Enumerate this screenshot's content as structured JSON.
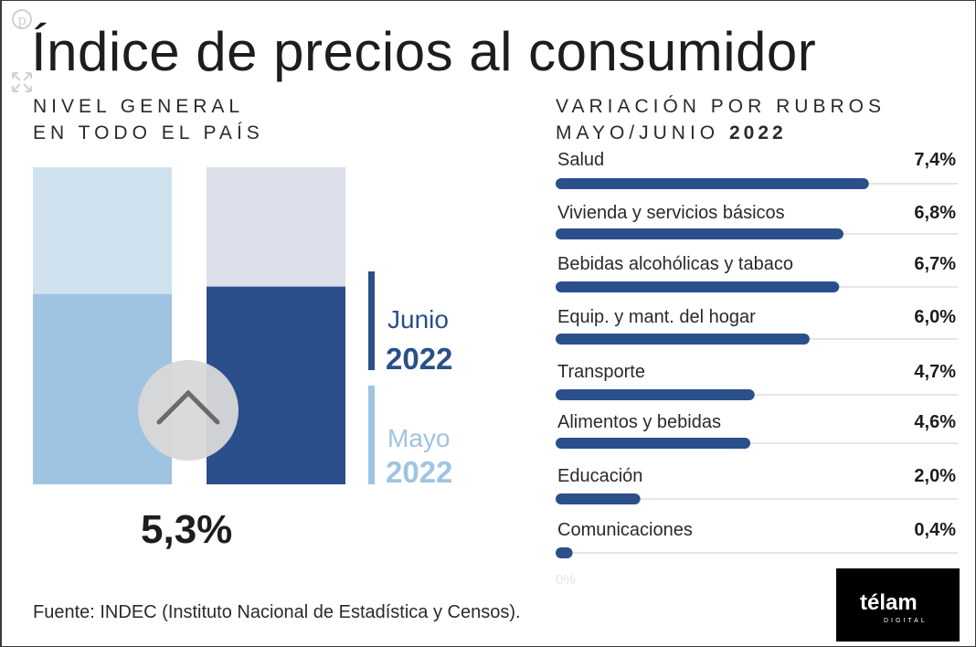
{
  "title": "Índice de precios al consumidor",
  "left_subtitle": {
    "line1": "NIVEL GENERAL",
    "line2": "EN TODO EL PAÍS"
  },
  "right_subtitle": {
    "line1": "VARIACIÓN POR RUBROS",
    "line2_prefix": "MAYO/JUNIO",
    "line2_year": "2022"
  },
  "headline_value": "5,3%",
  "legend": {
    "current": {
      "month": "Junio",
      "year": "2022",
      "color": "#2a4f8b"
    },
    "previous": {
      "month": "Mayo",
      "year": "2022",
      "color": "#9fc4e2"
    }
  },
  "zero_label": "0%",
  "source": "Fuente: INDEC (Instituto Nacional de Estadística y Censos).",
  "logo": {
    "word": "télam",
    "sub": "DIGITAL"
  },
  "icons": {
    "top": "pinterest-icon",
    "side": "expand-icon",
    "center": "chevron-up-icon"
  },
  "colors": {
    "dark_blue": "#2a4f8b",
    "light_blue": "#9fc4e2",
    "pale_blue": "#d0e2f0",
    "pale_lavender": "#dcdee9",
    "track": "#e6e6e6"
  },
  "chart_data": [
    {
      "type": "bar",
      "title": "NIVEL GENERAL EN TODO EL PAÍS",
      "categories": [
        "Mayo 2022",
        "Junio 2022"
      ],
      "values": [
        5.1,
        5.3
      ],
      "unit": "%",
      "ylim": [
        0,
        8.5
      ]
    },
    {
      "type": "bar",
      "orientation": "horizontal",
      "title": "VARIACIÓN POR RUBROS MAYO/JUNIO 2022",
      "categories": [
        "Salud",
        "Vivienda y servicios básicos",
        "Bebidas alcohólicas y tabaco",
        "Equip. y mant. del hogar",
        "Transporte",
        "Alimentos y bebidas",
        "Educación",
        "Comunicaciones"
      ],
      "values": [
        7.4,
        6.8,
        6.7,
        6.0,
        4.7,
        4.6,
        2.0,
        0.4
      ],
      "value_labels": [
        "7,4%",
        "6,8%",
        "6,7%",
        "6,0%",
        "4,7%",
        "4,6%",
        "2,0%",
        "0,4%"
      ],
      "xlim": [
        0,
        9.5
      ]
    }
  ]
}
